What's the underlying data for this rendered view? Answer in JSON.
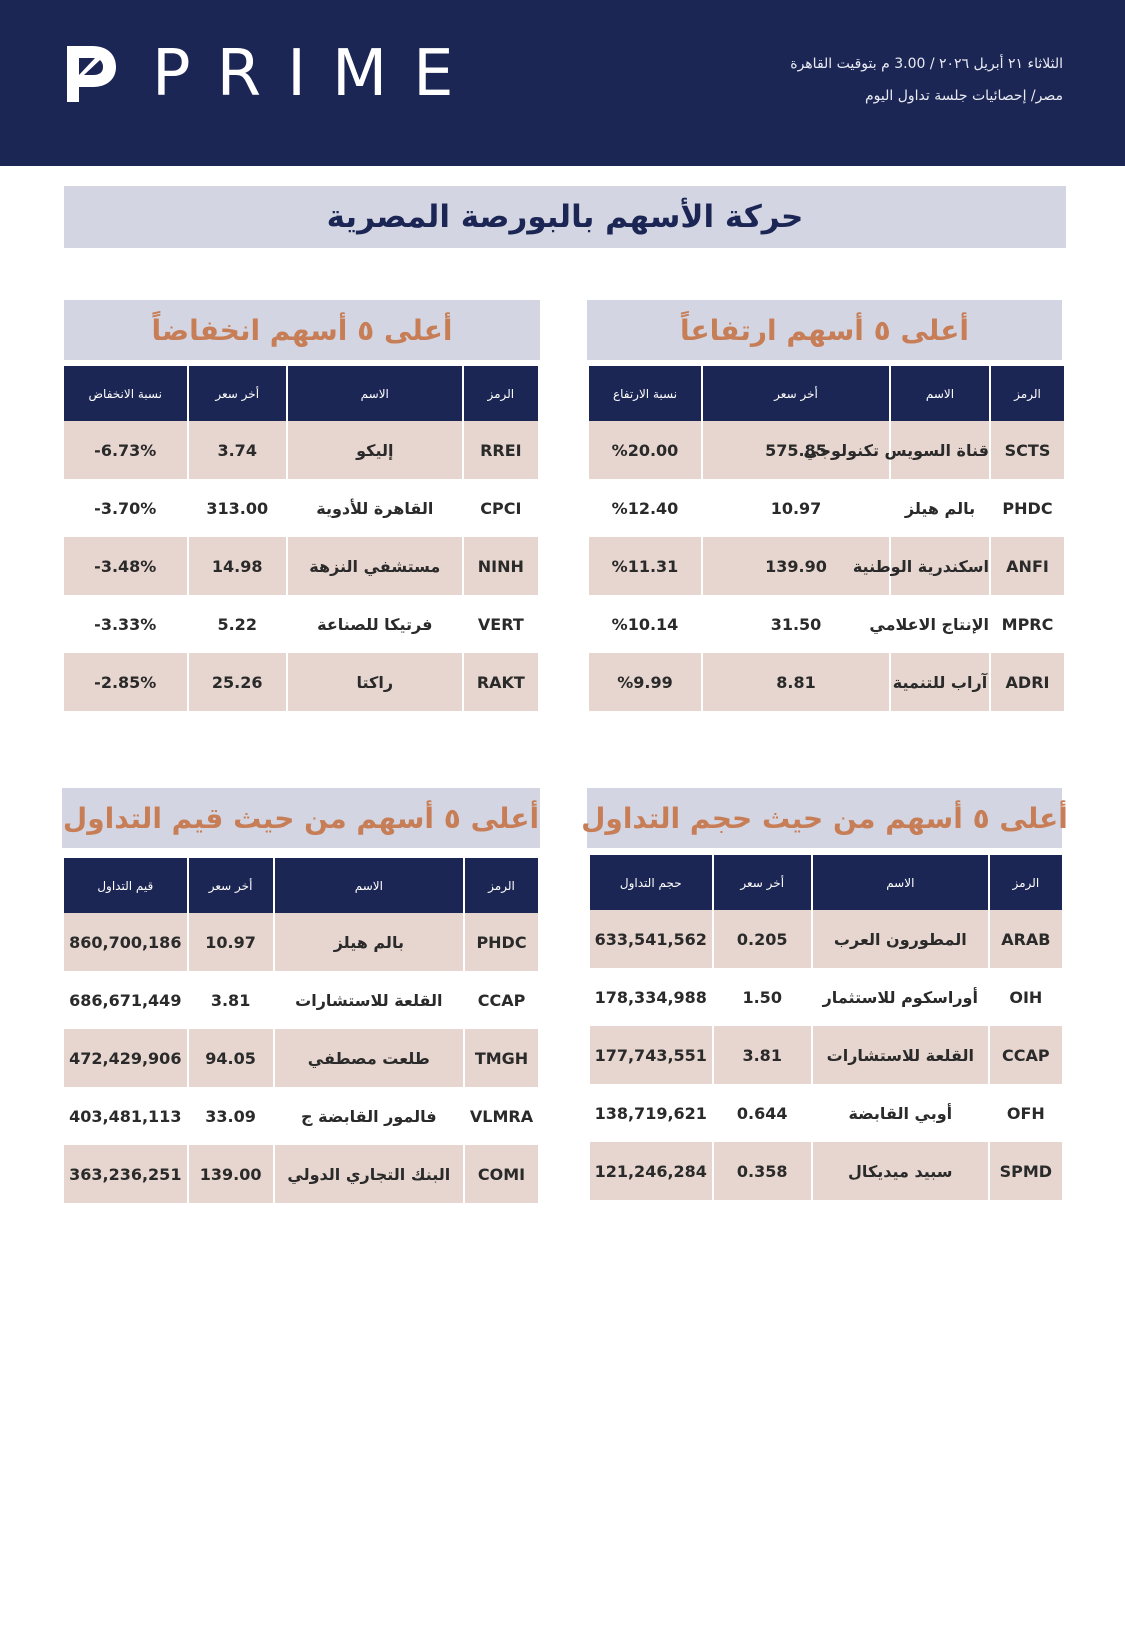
{
  "header": {
    "brand": "PRIME",
    "line1": "الثلاثاء ٢١ أبريل ٢٠٢٦ / 3.00 م بتوقيت القاهرة",
    "line2": "مصر/ إحصائيات جلسة تداول اليوم"
  },
  "page_title": "حركة الأسهم بالبورصة المصرية",
  "gainers": {
    "title": "أعلى ٥ أسهم ارتفاعاً",
    "columns": [
      "الرمز",
      "الاسم",
      "أخر سعر",
      "نسبة الارتفاع"
    ],
    "rows": [
      {
        "symbol": "SCTS",
        "name": "قناة السويس تكنولوجي",
        "price": "575.85",
        "change": "%20.00"
      },
      {
        "symbol": "PHDC",
        "name": "بالم هيلز",
        "price": "10.97",
        "change": "%12.40"
      },
      {
        "symbol": "ANFI",
        "name": "اسكندرية الوطنية",
        "price": "139.90",
        "change": "%11.31"
      },
      {
        "symbol": "MPRC",
        "name": "الإنتاج الاعلامي",
        "price": "31.50",
        "change": "%10.14"
      },
      {
        "symbol": "ADRI",
        "name": "آراب للتنمية",
        "price": "8.81",
        "change": "%9.99"
      }
    ]
  },
  "losers": {
    "title": "أعلى ٥ أسهم انخفاضاً",
    "columns": [
      "الرمز",
      "الاسم",
      "أخر سعر",
      "نسبة الانخفاض"
    ],
    "rows": [
      {
        "symbol": "RREI",
        "name": "إليكو",
        "price": "3.74",
        "change": "-6.73%"
      },
      {
        "symbol": "CPCI",
        "name": "القاهرة للأدوية",
        "price": "313.00",
        "change": "-3.70%"
      },
      {
        "symbol": "NINH",
        "name": "مستشفي النزهة",
        "price": "14.98",
        "change": "-3.48%"
      },
      {
        "symbol": "VERT",
        "name": "فرتيكا للصناعة",
        "price": "5.22",
        "change": "-3.33%"
      },
      {
        "symbol": "RAKT",
        "name": "راكتا",
        "price": "25.26",
        "change": "-2.85%"
      }
    ]
  },
  "by_volume": {
    "title": "أعلى ٥ أسهم من حيث حجم التداول",
    "columns": [
      "الرمز",
      "الاسم",
      "أخر سعر",
      "حجم التداول"
    ],
    "rows": [
      {
        "symbol": "ARAB",
        "name": "المطورون العرب",
        "price": "0.205",
        "amount": "633,541,562"
      },
      {
        "symbol": "OIH",
        "name": "أوراسكوم للاستثمار",
        "price": "1.50",
        "amount": "178,334,988"
      },
      {
        "symbol": "CCAP",
        "name": "القلعة للاستشارات",
        "price": "3.81",
        "amount": "177,743,551"
      },
      {
        "symbol": "OFH",
        "name": "أوبي القابضة",
        "price": "0.644",
        "amount": "138,719,621"
      },
      {
        "symbol": "SPMD",
        "name": "سبيد ميديكال",
        "price": "0.358",
        "amount": "121,246,284"
      }
    ]
  },
  "by_value": {
    "title": "أعلى ٥ أسهم من حيث قيم التداول",
    "columns": [
      "الرمز",
      "الاسم",
      "أخر سعر",
      "قيم التداول"
    ],
    "rows": [
      {
        "symbol": "PHDC",
        "name": "بالم هيلز",
        "price": "10.97",
        "amount": "860,700,186"
      },
      {
        "symbol": "CCAP",
        "name": "القلعة للاستشارات",
        "price": "3.81",
        "amount": "686,671,449"
      },
      {
        "symbol": "TMGH",
        "name": "طلعت مصطفي",
        "price": "94.05",
        "amount": "472,429,906"
      },
      {
        "symbol": "VLMRA",
        "name": "فالمور القابضة ج",
        "price": "33.09",
        "amount": "403,481,113"
      },
      {
        "symbol": "COMI",
        "name": "البنك التجاري الدولي",
        "price": "139.00",
        "amount": "363,236,251"
      }
    ]
  },
  "colors": {
    "navy": "#1c2654",
    "band": "#d3d6e2",
    "accent": "#c77d56",
    "row_shade": "#e7d6cf",
    "positive": "#1ea14a",
    "negative": "#d61f1f"
  }
}
